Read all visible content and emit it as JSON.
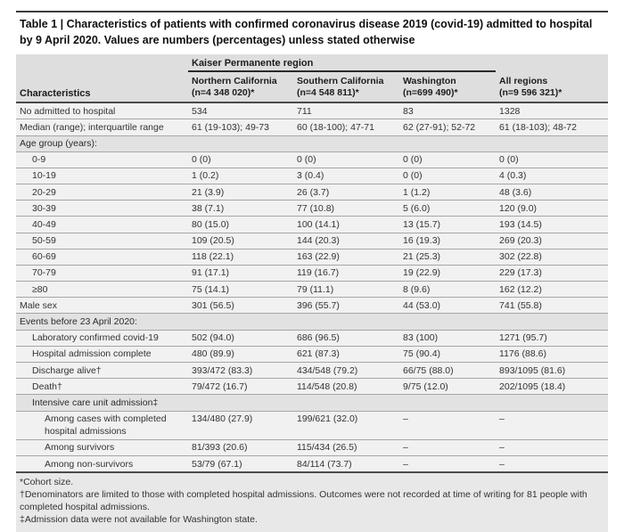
{
  "title": "Table 1 | Characteristics of patients with confirmed coronavirus disease 2019 (covid-19) admitted to hospital by 9 April 2020. Values are numbers (percentages) unless stated otherwise",
  "header": {
    "group_label": "Kaiser Permanente region",
    "characteristics_label": "Characteristics",
    "columns": [
      {
        "name": "Northern California",
        "n": "(n=4 348 020)*"
      },
      {
        "name": "Southern California",
        "n": "(n=4 548 811)*"
      },
      {
        "name": "Washington",
        "n": "(n=699 490)*"
      },
      {
        "name": "All regions",
        "n": "(n=9 596 321)*"
      }
    ]
  },
  "rows": [
    {
      "label": "No admitted to hospital",
      "indent": 0,
      "type": "data",
      "values": [
        "534",
        "711",
        "83",
        "1328"
      ]
    },
    {
      "label": "Median (range); interquartile range",
      "indent": 0,
      "type": "data",
      "values": [
        "61 (19-103); 49-73",
        "60 (18-100); 47-71",
        "62 (27-91); 52-72",
        "61 (18-103); 48-72"
      ]
    },
    {
      "label": "Age group (years):",
      "indent": 0,
      "type": "section"
    },
    {
      "label": "0-9",
      "indent": 1,
      "type": "data",
      "values": [
        "0 (0)",
        "0 (0)",
        "0 (0)",
        "0 (0)"
      ]
    },
    {
      "label": "10-19",
      "indent": 1,
      "type": "data",
      "values": [
        "1 (0.2)",
        "3 (0.4)",
        "0 (0)",
        "4 (0.3)"
      ]
    },
    {
      "label": "20-29",
      "indent": 1,
      "type": "data",
      "values": [
        "21 (3.9)",
        "26 (3.7)",
        "1 (1.2)",
        "48 (3.6)"
      ]
    },
    {
      "label": "30-39",
      "indent": 1,
      "type": "data",
      "values": [
        "38 (7.1)",
        "77 (10.8)",
        "5 (6.0)",
        "120 (9.0)"
      ]
    },
    {
      "label": "40-49",
      "indent": 1,
      "type": "data",
      "values": [
        "80 (15.0)",
        "100 (14.1)",
        "13 (15.7)",
        "193 (14.5)"
      ]
    },
    {
      "label": "50-59",
      "indent": 1,
      "type": "data",
      "values": [
        "109 (20.5)",
        "144 (20.3)",
        "16 (19.3)",
        "269 (20.3)"
      ]
    },
    {
      "label": "60-69",
      "indent": 1,
      "type": "data",
      "values": [
        "118 (22.1)",
        "163 (22.9)",
        "21 (25.3)",
        "302 (22.8)"
      ]
    },
    {
      "label": "70-79",
      "indent": 1,
      "type": "data",
      "values": [
        "91 (17.1)",
        "119 (16.7)",
        "19 (22.9)",
        "229 (17.3)"
      ]
    },
    {
      "label": "≥80",
      "indent": 1,
      "type": "data",
      "values": [
        "75 (14.1)",
        "79 (11.1)",
        "8 (9.6)",
        "162 (12.2)"
      ]
    },
    {
      "label": "Male sex",
      "indent": 0,
      "type": "data",
      "values": [
        "301 (56.5)",
        "396 (55.7)",
        "44 (53.0)",
        "741 (55.8)"
      ]
    },
    {
      "label": "Events before 23 April 2020:",
      "indent": 0,
      "type": "section"
    },
    {
      "label": "Laboratory confirmed covid-19",
      "indent": 1,
      "type": "data",
      "values": [
        "502 (94.0)",
        "686 (96.5)",
        "83 (100)",
        "1271 (95.7)"
      ]
    },
    {
      "label": "Hospital admission complete",
      "indent": 1,
      "type": "data",
      "values": [
        "480 (89.9)",
        "621 (87.3)",
        "75 (90.4)",
        "1176 (88.6)"
      ]
    },
    {
      "label": "Discharge alive†",
      "indent": 1,
      "type": "data",
      "values": [
        "393/472 (83.3)",
        "434/548 (79.2)",
        "66/75 (88.0)",
        "893/1095 (81.6)"
      ]
    },
    {
      "label": "Death†",
      "indent": 1,
      "type": "data",
      "values": [
        "79/472 (16.7)",
        "114/548 (20.8)",
        "9/75 (12.0)",
        "202/1095 (18.4)"
      ]
    },
    {
      "label": "Intensive care unit admission‡",
      "indent": 1,
      "type": "section"
    },
    {
      "label": "Among cases with completed hospital admissions",
      "indent": 2,
      "type": "data",
      "values": [
        "134/480 (27.9)",
        "199/621 (32.0)",
        "–",
        "–"
      ]
    },
    {
      "label": "Among survivors",
      "indent": 2,
      "type": "data",
      "values": [
        "81/393 (20.6)",
        "115/434 (26.5)",
        "–",
        "–"
      ]
    },
    {
      "label": "Among non-survivors",
      "indent": 2,
      "type": "data",
      "values": [
        "53/79 (67.1)",
        "84/114 (73.7)",
        "–",
        "–"
      ]
    }
  ],
  "footnotes": [
    "*Cohort size.",
    "†Denominators are limited to those with completed hospital admissions. Outcomes were not recorded at time of writing for 81 people with completed hospital admissions.",
    "‡Admission data were not available for Washington state."
  ],
  "colors": {
    "header_bg": "#dedede",
    "row_bg": "#f1f1f1",
    "section_row_bg": "#e2e2e2",
    "footnote_bg": "#e8e8e8",
    "rule_heavy": "#4a4a4a",
    "rule_light": "#a6a6a6"
  }
}
